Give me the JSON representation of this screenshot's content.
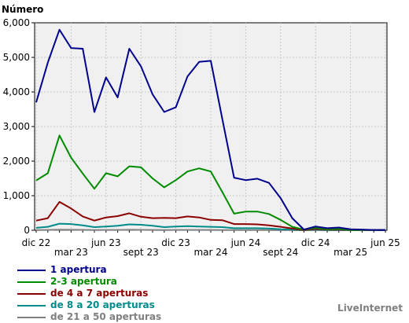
{
  "chart_data": {
    "type": "line",
    "title": "",
    "ylabel": "Número",
    "xlabel": "",
    "ylim": [
      0,
      6000
    ],
    "yticks": [
      "0",
      "1,000",
      "2,000",
      "3,000",
      "4,000",
      "5,000",
      "6,000"
    ],
    "x": [
      "2022-12",
      "2023-01",
      "2023-02",
      "2023-03",
      "2023-04",
      "2023-05",
      "2023-06",
      "2023-07",
      "2023-08",
      "2023-09",
      "2023-10",
      "2023-11",
      "2023-12",
      "2024-01",
      "2024-02",
      "2024-03",
      "2024-04",
      "2024-05",
      "2024-06",
      "2024-07",
      "2024-08",
      "2024-09",
      "2024-10",
      "2024-11",
      "2024-12",
      "2025-01",
      "2025-02",
      "2025-03",
      "2025-04",
      "2025-05",
      "2025-06"
    ],
    "xtick_labels": [
      {
        "label": "dic 22",
        "at": "2022-12",
        "row": 1
      },
      {
        "label": "mar 23",
        "at": "2023-03",
        "row": 2
      },
      {
        "label": "jun 23",
        "at": "2023-06",
        "row": 1
      },
      {
        "label": "sept 23",
        "at": "2023-09",
        "row": 2
      },
      {
        "label": "dic 23",
        "at": "2023-12",
        "row": 1
      },
      {
        "label": "mar 24",
        "at": "2024-03",
        "row": 2
      },
      {
        "label": "jun 24",
        "at": "2024-06",
        "row": 1
      },
      {
        "label": "sept 24",
        "at": "2024-09",
        "row": 2
      },
      {
        "label": "dic 24",
        "at": "2024-12",
        "row": 1
      },
      {
        "label": "mar 25",
        "at": "2025-03",
        "row": 2
      },
      {
        "label": "jun 25",
        "at": "2025-06",
        "row": 1
      }
    ],
    "grid": true,
    "legend_position": "bottom-left",
    "series": [
      {
        "name": "1 apertura",
        "color": "#00008b",
        "values": [
          3700,
          4850,
          5800,
          5270,
          5250,
          3420,
          4420,
          3840,
          5250,
          4740,
          3930,
          3420,
          3560,
          4450,
          4870,
          4900,
          3200,
          1520,
          1450,
          1490,
          1370,
          930,
          350,
          20,
          110,
          60,
          80,
          30,
          20,
          10,
          10
        ]
      },
      {
        "name": "2-3 apertura",
        "color": "#008b00",
        "values": [
          1440,
          1650,
          2740,
          2100,
          1640,
          1200,
          1650,
          1560,
          1850,
          1820,
          1500,
          1240,
          1450,
          1700,
          1790,
          1700,
          1100,
          480,
          540,
          540,
          470,
          300,
          100,
          20,
          70,
          30,
          40,
          10,
          10,
          10,
          10
        ]
      },
      {
        "name": "de 4 a 7 aperturas",
        "color": "#8b0000",
        "values": [
          280,
          350,
          820,
          630,
          400,
          280,
          370,
          410,
          490,
          390,
          350,
          360,
          350,
          400,
          370,
          300,
          290,
          180,
          180,
          170,
          140,
          100,
          50,
          10,
          40,
          20,
          20,
          10,
          10,
          10,
          10
        ]
      },
      {
        "name": "de 8 a 20 aperturas",
        "color": "#008b8b",
        "values": [
          70,
          100,
          190,
          180,
          140,
          90,
          110,
          130,
          170,
          160,
          130,
          90,
          110,
          120,
          110,
          100,
          90,
          60,
          60,
          60,
          50,
          30,
          20,
          10,
          20,
          10,
          10,
          10,
          10,
          10,
          10
        ]
      },
      {
        "name": "de 21 a 50 aperturas",
        "color": "#808080",
        "values": [
          5,
          8,
          15,
          14,
          11,
          7,
          8,
          10,
          13,
          12,
          10,
          7,
          8,
          9,
          8,
          8,
          7,
          5,
          5,
          5,
          4,
          3,
          2,
          1,
          2,
          1,
          1,
          1,
          1,
          1,
          1
        ]
      }
    ]
  },
  "brand": "LiveInternet",
  "colors": {
    "plot_bg": "#f0f0f0",
    "grid": "#c8c8c8",
    "axis": "#000000"
  }
}
